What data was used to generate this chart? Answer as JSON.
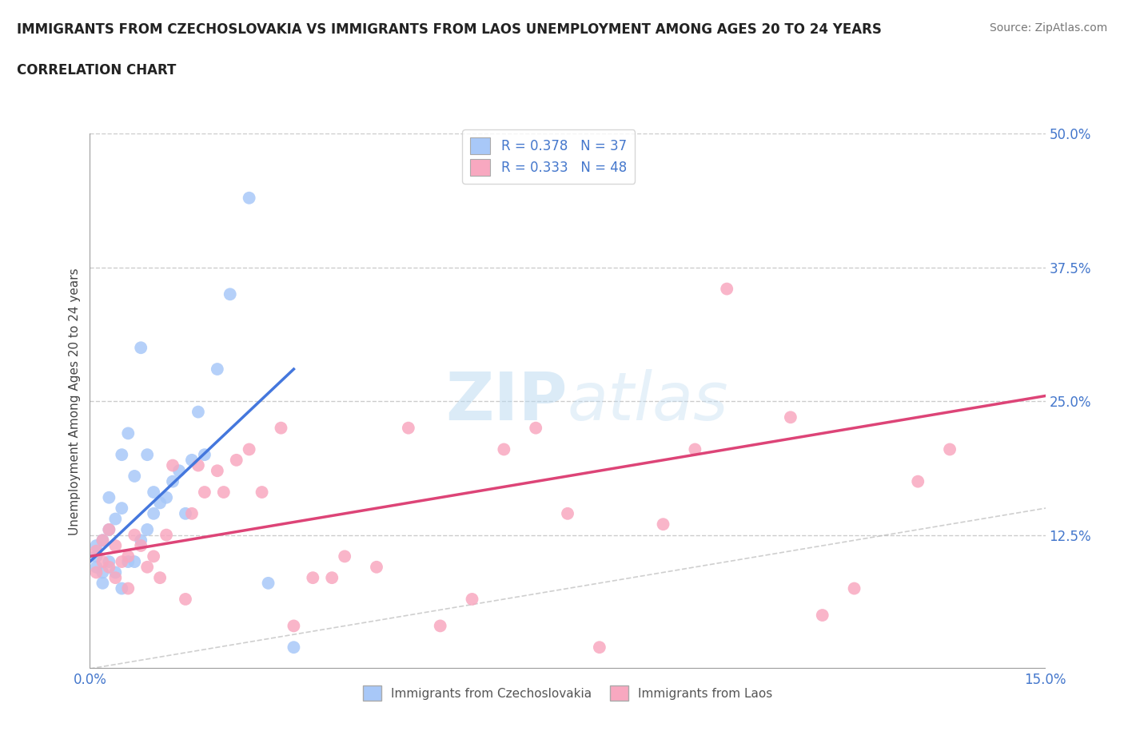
{
  "title_line1": "IMMIGRANTS FROM CZECHOSLOVAKIA VS IMMIGRANTS FROM LAOS UNEMPLOYMENT AMONG AGES 20 TO 24 YEARS",
  "title_line2": "CORRELATION CHART",
  "source": "Source: ZipAtlas.com",
  "ylabel": "Unemployment Among Ages 20 to 24 years",
  "xlim": [
    0.0,
    0.15
  ],
  "ylim": [
    0.0,
    0.5
  ],
  "xtick_positions": [
    0.0,
    0.15
  ],
  "xtick_labels": [
    "0.0%",
    "15.0%"
  ],
  "ytick_positions": [
    0.125,
    0.25,
    0.375,
    0.5
  ],
  "ytick_labels": [
    "12.5%",
    "25.0%",
    "37.5%",
    "50.0%"
  ],
  "r_czech": 0.378,
  "n_czech": 37,
  "r_laos": 0.333,
  "n_laos": 48,
  "color_czech": "#a8c8f8",
  "color_laos": "#f8a8c0",
  "line_czech": "#4477dd",
  "line_laos": "#dd4477",
  "background_color": "#ffffff",
  "czech_x": [
    0.001,
    0.001,
    0.001,
    0.002,
    0.002,
    0.002,
    0.003,
    0.003,
    0.003,
    0.004,
    0.004,
    0.005,
    0.005,
    0.005,
    0.006,
    0.006,
    0.007,
    0.007,
    0.008,
    0.008,
    0.009,
    0.009,
    0.01,
    0.01,
    0.011,
    0.012,
    0.013,
    0.014,
    0.015,
    0.016,
    0.017,
    0.018,
    0.02,
    0.022,
    0.025,
    0.028,
    0.032
  ],
  "czech_y": [
    0.105,
    0.115,
    0.095,
    0.09,
    0.12,
    0.08,
    0.1,
    0.13,
    0.16,
    0.09,
    0.14,
    0.075,
    0.15,
    0.2,
    0.1,
    0.22,
    0.18,
    0.1,
    0.12,
    0.3,
    0.13,
    0.2,
    0.145,
    0.165,
    0.155,
    0.16,
    0.175,
    0.185,
    0.145,
    0.195,
    0.24,
    0.2,
    0.28,
    0.35,
    0.44,
    0.08,
    0.02
  ],
  "laos_x": [
    0.001,
    0.001,
    0.002,
    0.002,
    0.003,
    0.003,
    0.004,
    0.004,
    0.005,
    0.006,
    0.006,
    0.007,
    0.008,
    0.009,
    0.01,
    0.011,
    0.012,
    0.013,
    0.015,
    0.016,
    0.017,
    0.018,
    0.02,
    0.021,
    0.023,
    0.025,
    0.027,
    0.03,
    0.032,
    0.035,
    0.038,
    0.04,
    0.045,
    0.05,
    0.055,
    0.06,
    0.065,
    0.07,
    0.075,
    0.08,
    0.09,
    0.095,
    0.1,
    0.11,
    0.115,
    0.12,
    0.13,
    0.135
  ],
  "laos_y": [
    0.09,
    0.11,
    0.1,
    0.12,
    0.095,
    0.13,
    0.085,
    0.115,
    0.1,
    0.105,
    0.075,
    0.125,
    0.115,
    0.095,
    0.105,
    0.085,
    0.125,
    0.19,
    0.065,
    0.145,
    0.19,
    0.165,
    0.185,
    0.165,
    0.195,
    0.205,
    0.165,
    0.225,
    0.04,
    0.085,
    0.085,
    0.105,
    0.095,
    0.225,
    0.04,
    0.065,
    0.205,
    0.225,
    0.145,
    0.02,
    0.135,
    0.205,
    0.355,
    0.235,
    0.05,
    0.075,
    0.175,
    0.205
  ],
  "czech_trend_x": [
    0.0,
    0.032
  ],
  "czech_trend_y": [
    0.1,
    0.28
  ],
  "laos_trend_x": [
    0.0,
    0.15
  ],
  "laos_trend_y": [
    0.105,
    0.255
  ]
}
